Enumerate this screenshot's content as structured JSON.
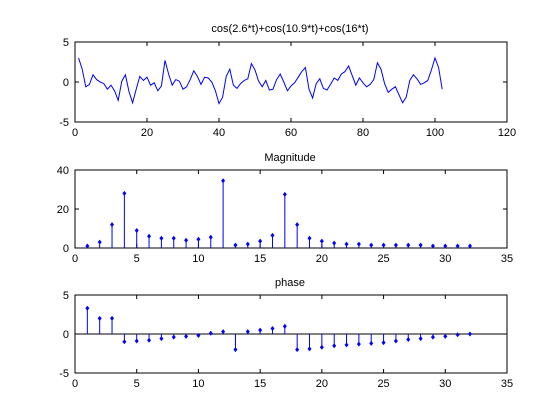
{
  "figure": {
    "background": "#ffffff",
    "line_color": "#0000ff",
    "axes_color": "#000000"
  },
  "chart_data": [
    {
      "type": "line",
      "title": "cos(2.6*t)+cos(10.9*t)+cos(16*t)",
      "xlabel": "",
      "ylabel": "",
      "xlim": [
        0,
        120
      ],
      "ylim": [
        -5,
        5
      ],
      "xticks": [
        0,
        20,
        40,
        60,
        80,
        100,
        120
      ],
      "yticks": [
        -5,
        0,
        5
      ],
      "xtick_labels": [
        "0",
        "20",
        "40",
        "60",
        "80",
        "100",
        "120"
      ],
      "ytick_labels": [
        "-5",
        "0",
        "5"
      ],
      "grid": false,
      "x_start": 1,
      "x_step": 1,
      "values": [
        3.0,
        1.6,
        -0.6,
        -0.3,
        0.9,
        0.3,
        0.0,
        -0.2,
        -0.9,
        -0.4,
        -1.1,
        -2.3,
        0.1,
        0.9,
        -1.2,
        -2.6,
        -0.9,
        0.7,
        0.2,
        0.6,
        -0.4,
        -0.1,
        -1.1,
        -0.5,
        2.7,
        1.0,
        -0.4,
        0.3,
        0.1,
        -0.9,
        -0.6,
        0.3,
        1.4,
        0.7,
        -0.3,
        0.6,
        0.5,
        0.0,
        -1.1,
        -2.7,
        -1.9,
        0.7,
        1.6,
        -0.4,
        -0.8,
        -0.2,
        0.2,
        0.4,
        2.3,
        1.5,
        0.1,
        -0.6,
        0.2,
        -1.0,
        -0.9,
        0.3,
        1.0,
        0.0,
        -1.1,
        -0.5,
        -0.1,
        0.6,
        1.3,
        1.8,
        -0.9,
        -2.0,
        -0.2,
        0.4,
        -0.8,
        -1.0,
        -0.3,
        0.5,
        0.2,
        1.0,
        1.3,
        2.0,
        0.8,
        -0.4,
        0.5,
        -0.1,
        -0.6,
        -0.3,
        0.3,
        2.4,
        1.6,
        -0.2,
        -1.3,
        -0.9,
        -0.6,
        -1.6,
        -2.6,
        -1.9,
        0.2,
        0.9,
        0.4,
        -0.3,
        -0.1,
        0.2,
        1.5,
        3.0,
        1.8,
        -0.9
      ]
    },
    {
      "type": "stem",
      "title": "Magnitude",
      "xlabel": "",
      "ylabel": "",
      "xlim": [
        0,
        35
      ],
      "ylim": [
        0,
        40
      ],
      "xticks": [
        0,
        5,
        10,
        15,
        20,
        25,
        30,
        35
      ],
      "yticks": [
        0,
        20,
        40
      ],
      "xtick_labels": [
        "0",
        "5",
        "10",
        "15",
        "20",
        "25",
        "30",
        "35"
      ],
      "ytick_labels": [
        "0",
        "20",
        "40"
      ],
      "grid": false,
      "x": [
        1,
        2,
        3,
        4,
        5,
        6,
        7,
        8,
        9,
        10,
        11,
        12,
        13,
        14,
        15,
        16,
        17,
        18,
        19,
        20,
        21,
        22,
        23,
        24,
        25,
        26,
        27,
        28,
        29,
        30,
        31,
        32
      ],
      "values": [
        1,
        3,
        12,
        28,
        9,
        6,
        5,
        5,
        4,
        4.5,
        5.5,
        34.5,
        1.5,
        2,
        3.5,
        6.5,
        27.5,
        12,
        5,
        3.5,
        2.5,
        2,
        2,
        1.5,
        1.5,
        1.5,
        1.5,
        1.5,
        1,
        1,
        1,
        1
      ]
    },
    {
      "type": "stem",
      "title": "phase",
      "xlabel": "",
      "ylabel": "",
      "xlim": [
        0,
        35
      ],
      "ylim": [
        -5,
        5
      ],
      "xticks": [
        0,
        5,
        10,
        15,
        20,
        25,
        30,
        35
      ],
      "yticks": [
        -5,
        0,
        5
      ],
      "xtick_labels": [
        "0",
        "5",
        "10",
        "15",
        "20",
        "25",
        "30",
        "35"
      ],
      "ytick_labels": [
        "-5",
        "0",
        "5"
      ],
      "grid": false,
      "x": [
        1,
        2,
        3,
        4,
        5,
        6,
        7,
        8,
        9,
        10,
        11,
        12,
        13,
        14,
        15,
        16,
        17,
        18,
        19,
        20,
        21,
        22,
        23,
        24,
        25,
        26,
        27,
        28,
        29,
        30,
        31,
        32
      ],
      "values": [
        3.3,
        2.0,
        2.0,
        -1.0,
        -0.9,
        -0.8,
        -0.6,
        -0.4,
        -0.3,
        -0.2,
        0.1,
        0.3,
        -2.0,
        0.3,
        0.5,
        0.7,
        1.0,
        -2.0,
        -1.9,
        -1.7,
        -1.5,
        -1.4,
        -1.3,
        -1.2,
        -1.1,
        -0.9,
        -0.7,
        -0.6,
        -0.4,
        -0.3,
        -0.1,
        0.0
      ]
    }
  ]
}
